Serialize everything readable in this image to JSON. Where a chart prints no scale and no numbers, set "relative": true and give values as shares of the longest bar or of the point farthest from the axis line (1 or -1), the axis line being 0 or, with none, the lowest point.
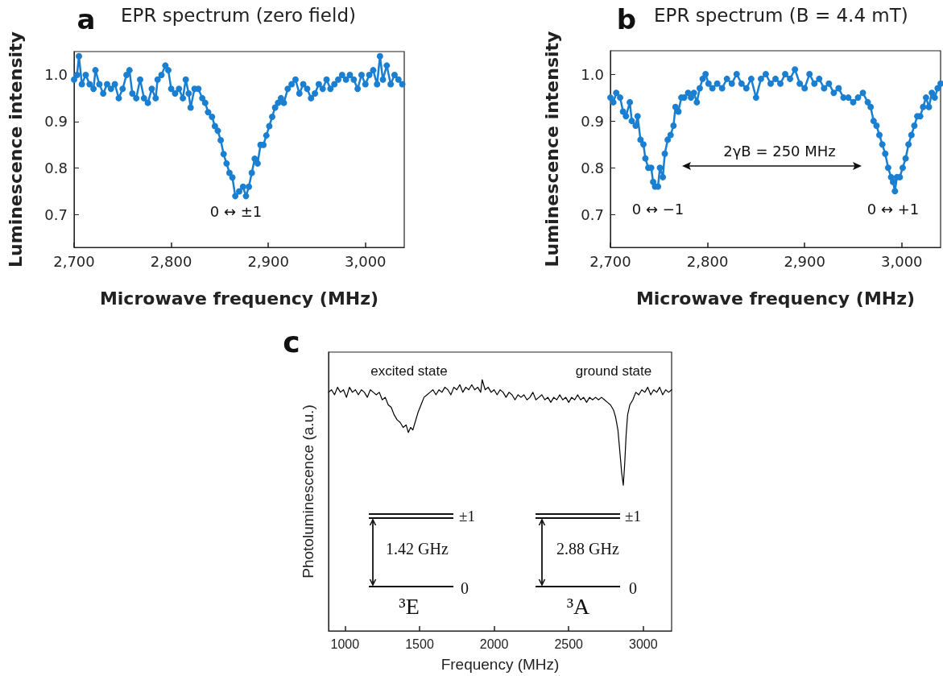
{
  "chart_data": [
    {
      "type": "line",
      "title": "EPR spectrum (zero field)",
      "xlabel": "Microwave frequency (MHz)",
      "ylabel": "Luminescence intensity",
      "x": [
        2700,
        2703,
        2705,
        2708,
        2712,
        2716,
        2720,
        2722,
        2726,
        2730,
        2734,
        2738,
        2742,
        2746,
        2750,
        2754,
        2757,
        2760,
        2764,
        2768,
        2772,
        2776,
        2780,
        2784,
        2786,
        2790,
        2794,
        2797,
        2800,
        2804,
        2808,
        2812,
        2815,
        2818,
        2820,
        2824,
        2828,
        2832,
        2835,
        2838,
        2842,
        2845,
        2848,
        2851,
        2854,
        2857,
        2860,
        2863,
        2866,
        2870,
        2874,
        2877,
        2880,
        2883,
        2886,
        2889,
        2892,
        2895,
        2898,
        2901,
        2904,
        2907,
        2910,
        2913,
        2916,
        2920,
        2924,
        2928,
        2932,
        2936,
        2940,
        2944,
        2948,
        2952,
        2956,
        2960,
        2964,
        2968,
        2972,
        2976,
        2980,
        2984,
        2988,
        2992,
        2996,
        3000,
        3004,
        3008,
        3012,
        3015,
        3018,
        3022,
        3026,
        3030,
        3034,
        3038
      ],
      "series": [
        {
          "color": "#1a7fd0",
          "values": [
            0.99,
            1.0,
            1.04,
            0.98,
            1.0,
            0.98,
            0.97,
            1.01,
            0.98,
            0.96,
            0.98,
            0.97,
            0.98,
            0.95,
            0.97,
            1.0,
            1.01,
            0.96,
            0.95,
            0.99,
            0.95,
            0.94,
            0.97,
            0.95,
            0.99,
            1.0,
            1.02,
            1.01,
            0.97,
            0.96,
            0.97,
            0.95,
            0.99,
            0.96,
            0.93,
            0.97,
            0.97,
            0.95,
            0.94,
            0.92,
            0.91,
            0.89,
            0.88,
            0.86,
            0.83,
            0.81,
            0.79,
            0.78,
            0.74,
            0.75,
            0.76,
            0.74,
            0.76,
            0.79,
            0.82,
            0.81,
            0.85,
            0.85,
            0.87,
            0.89,
            0.91,
            0.93,
            0.94,
            0.95,
            0.94,
            0.97,
            0.98,
            0.99,
            0.96,
            0.98,
            0.97,
            0.95,
            0.96,
            0.98,
            0.97,
            0.99,
            0.97,
            0.98,
            0.99,
            1.0,
            0.99,
            1.0,
            0.99,
            0.97,
            1.0,
            0.98,
            1.0,
            1.01,
            0.98,
            1.04,
            0.99,
            1.02,
            0.98,
            1.0,
            0.99,
            0.98
          ]
        }
      ],
      "xlim": [
        2700,
        3040
      ],
      "xticks": [
        {
          "value": 2700,
          "label": "2,700"
        },
        {
          "value": 2800,
          "label": "2,800"
        },
        {
          "value": 2900,
          "label": "2,900"
        },
        {
          "value": 3000,
          "label": "3,000"
        }
      ],
      "ylim": [
        0.63,
        1.05
      ],
      "yticks": [
        0.7,
        0.8,
        0.9,
        {
          "value": 1,
          "label": "1.0"
        }
      ],
      "grid": false,
      "marker": "circle",
      "line_style": "solid",
      "annotations": [
        "a",
        "0 ↔ ±1"
      ]
    },
    {
      "type": "line",
      "title": "EPR spectrum (B = 4.4 mT)",
      "xlabel": "Microwave frequency (MHz)",
      "ylabel": "Luminescence intensity",
      "x": [
        2700,
        2703,
        2706,
        2710,
        2713,
        2716,
        2720,
        2722,
        2726,
        2728,
        2731,
        2734,
        2736,
        2739,
        2742,
        2744,
        2746,
        2749,
        2751,
        2754,
        2756,
        2759,
        2762,
        2765,
        2767,
        2770,
        2773,
        2776,
        2780,
        2783,
        2786,
        2789,
        2792,
        2795,
        2798,
        2801,
        2805,
        2810,
        2815,
        2820,
        2825,
        2830,
        2835,
        2840,
        2845,
        2850,
        2855,
        2860,
        2865,
        2870,
        2875,
        2880,
        2885,
        2890,
        2895,
        2900,
        2905,
        2910,
        2915,
        2920,
        2925,
        2930,
        2935,
        2940,
        2945,
        2950,
        2955,
        2960,
        2965,
        2968,
        2971,
        2974,
        2977,
        2980,
        2983,
        2986,
        2989,
        2991,
        2993,
        2995,
        2998,
        3001,
        3004,
        3007,
        3010,
        3013,
        3016,
        3019,
        3022,
        3025,
        3028,
        3031,
        3034,
        3037,
        3040
      ],
      "series": [
        {
          "color": "#1a7fd0",
          "values": [
            0.95,
            0.94,
            0.96,
            0.95,
            0.92,
            0.91,
            0.94,
            0.9,
            0.89,
            0.91,
            0.86,
            0.85,
            0.82,
            0.8,
            0.8,
            0.77,
            0.76,
            0.76,
            0.8,
            0.78,
            0.83,
            0.86,
            0.87,
            0.89,
            0.93,
            0.92,
            0.95,
            0.95,
            0.96,
            0.95,
            0.96,
            0.94,
            0.97,
            0.99,
            1.0,
            0.98,
            0.97,
            0.98,
            0.97,
            0.99,
            0.98,
            1.0,
            0.98,
            0.97,
            0.99,
            0.95,
            0.99,
            1.0,
            0.98,
            0.99,
            0.98,
            1.0,
            0.99,
            1.01,
            0.98,
            0.97,
            1.0,
            0.98,
            0.99,
            0.97,
            0.98,
            0.96,
            0.97,
            0.95,
            0.95,
            0.94,
            0.95,
            0.96,
            0.94,
            0.93,
            0.9,
            0.89,
            0.87,
            0.85,
            0.83,
            0.8,
            0.78,
            0.77,
            0.75,
            0.78,
            0.78,
            0.8,
            0.82,
            0.85,
            0.87,
            0.89,
            0.91,
            0.91,
            0.93,
            0.95,
            0.93,
            0.96,
            0.95,
            0.97,
            0.98
          ]
        }
      ],
      "xlim": [
        2700,
        3040
      ],
      "xticks": [
        {
          "value": 2700,
          "label": "2,700"
        },
        {
          "value": 2800,
          "label": "2,800"
        },
        {
          "value": 2900,
          "label": "2,900"
        },
        {
          "value": 3000,
          "label": "3,000"
        }
      ],
      "ylim": [
        0.63,
        1.05
      ],
      "yticks": [
        0.7,
        0.8,
        0.9,
        {
          "value": 1,
          "label": "1.0"
        }
      ],
      "grid": false,
      "marker": "circle",
      "line_style": "solid",
      "annotations": [
        "b",
        "0 ↔ −1",
        "0 ↔ +1",
        "2γB = 250 MHz"
      ]
    },
    {
      "type": "line",
      "xlabel": "Frequency (MHz)",
      "ylabel": "Photoluminescence (a.u.)",
      "relative": true,
      "x": [
        890,
        910,
        930,
        950,
        970,
        990,
        1010,
        1030,
        1050,
        1070,
        1090,
        1110,
        1130,
        1150,
        1170,
        1190,
        1210,
        1230,
        1250,
        1270,
        1290,
        1310,
        1330,
        1350,
        1370,
        1390,
        1410,
        1425,
        1440,
        1455,
        1470,
        1490,
        1510,
        1530,
        1550,
        1570,
        1590,
        1610,
        1630,
        1650,
        1670,
        1690,
        1710,
        1730,
        1750,
        1770,
        1790,
        1810,
        1830,
        1850,
        1870,
        1890,
        1910,
        1920,
        1940,
        1960,
        1980,
        2000,
        2020,
        2040,
        2060,
        2080,
        2100,
        2120,
        2140,
        2160,
        2180,
        2200,
        2220,
        2240,
        2260,
        2280,
        2300,
        2320,
        2340,
        2360,
        2380,
        2400,
        2420,
        2440,
        2460,
        2480,
        2500,
        2520,
        2540,
        2560,
        2580,
        2600,
        2620,
        2640,
        2660,
        2680,
        2700,
        2720,
        2740,
        2760,
        2780,
        2800,
        2815,
        2830,
        2845,
        2855,
        2866,
        2875,
        2885,
        2895,
        2910,
        2930,
        2950,
        2970,
        2990,
        3010,
        3030,
        3050,
        3070,
        3090,
        3110,
        3130,
        3150,
        3170,
        3190
      ],
      "series": [
        {
          "color": "#000000",
          "values": [
            0.95,
            0.96,
            0.94,
            0.97,
            0.95,
            0.96,
            0.93,
            0.97,
            0.95,
            0.96,
            0.94,
            0.96,
            0.95,
            0.93,
            0.96,
            0.95,
            0.94,
            0.95,
            0.92,
            0.93,
            0.9,
            0.89,
            0.86,
            0.84,
            0.83,
            0.81,
            0.82,
            0.79,
            0.81,
            0.8,
            0.83,
            0.87,
            0.9,
            0.93,
            0.94,
            0.95,
            0.96,
            0.94,
            0.96,
            0.95,
            0.97,
            0.96,
            0.94,
            0.97,
            0.96,
            0.98,
            0.95,
            0.97,
            0.96,
            0.98,
            0.96,
            0.97,
            0.95,
            1.0,
            0.96,
            0.97,
            0.95,
            0.96,
            0.94,
            0.96,
            0.95,
            0.93,
            0.95,
            0.94,
            0.92,
            0.94,
            0.93,
            0.94,
            0.92,
            0.93,
            0.95,
            0.92,
            0.93,
            0.94,
            0.92,
            0.93,
            0.91,
            0.93,
            0.92,
            0.94,
            0.92,
            0.93,
            0.91,
            0.93,
            0.92,
            0.94,
            0.92,
            0.93,
            0.91,
            0.93,
            0.92,
            0.93,
            0.92,
            0.93,
            0.92,
            0.91,
            0.9,
            0.88,
            0.85,
            0.8,
            0.7,
            0.63,
            0.58,
            0.66,
            0.78,
            0.86,
            0.9,
            0.92,
            0.95,
            0.94,
            0.96,
            0.95,
            0.97,
            0.94,
            0.96,
            0.95,
            0.97,
            0.94,
            0.96,
            0.95,
            0.96
          ]
        }
      ],
      "xlim": [
        890,
        3190
      ],
      "xticks": [
        1000,
        1500,
        2000,
        2500,
        3000
      ],
      "grid": false,
      "marker": "none",
      "line_style": "solid",
      "tick_labels": "x",
      "annotations": [
        "c",
        "excited state",
        "ground state",
        "±1",
        "1.42 GHz",
        "0",
        "³E",
        "±1",
        "2.88 GHz",
        "0",
        "³A"
      ]
    }
  ]
}
